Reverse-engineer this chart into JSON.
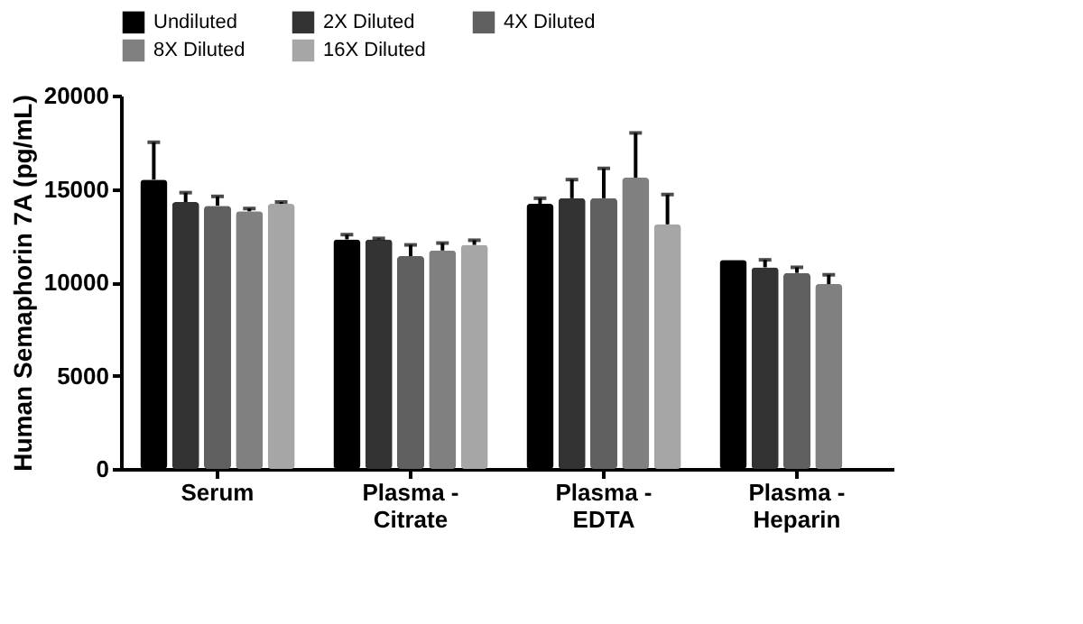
{
  "chart_data": {
    "type": "bar",
    "ylabel": "Human Semaphorin 7A (pg/mL)",
    "categories": [
      "Serum",
      "Plasma -\nCitrate",
      "Plasma -\nEDTA",
      "Plasma -\nHeparin"
    ],
    "series": [
      {
        "name": "Undiluted",
        "color": "#000000",
        "values": [
          15500,
          12300,
          14200,
          11200
        ],
        "errors": [
          2000,
          250,
          300,
          null
        ]
      },
      {
        "name": "2X Diluted",
        "color": "#333333",
        "values": [
          14300,
          12300,
          14500,
          10800
        ],
        "errors": [
          500,
          50,
          1000,
          400
        ]
      },
      {
        "name": "4X Diluted",
        "color": "#606060",
        "values": [
          14100,
          11400,
          14500,
          10500
        ],
        "errors": [
          500,
          600,
          1600,
          300
        ]
      },
      {
        "name": "8X Diluted",
        "color": "#808080",
        "values": [
          13800,
          11700,
          15600,
          9900
        ],
        "errors": [
          150,
          400,
          2400,
          500
        ]
      },
      {
        "name": "16X Diluted",
        "color": "#a6a6a6",
        "values": [
          14200,
          12000,
          13100,
          null
        ],
        "errors": [
          100,
          250,
          1600,
          null
        ]
      }
    ],
    "ylim": [
      0,
      20000
    ],
    "yticks": [
      0,
      5000,
      10000,
      15000,
      20000
    ],
    "grid": false,
    "legend": "top"
  }
}
